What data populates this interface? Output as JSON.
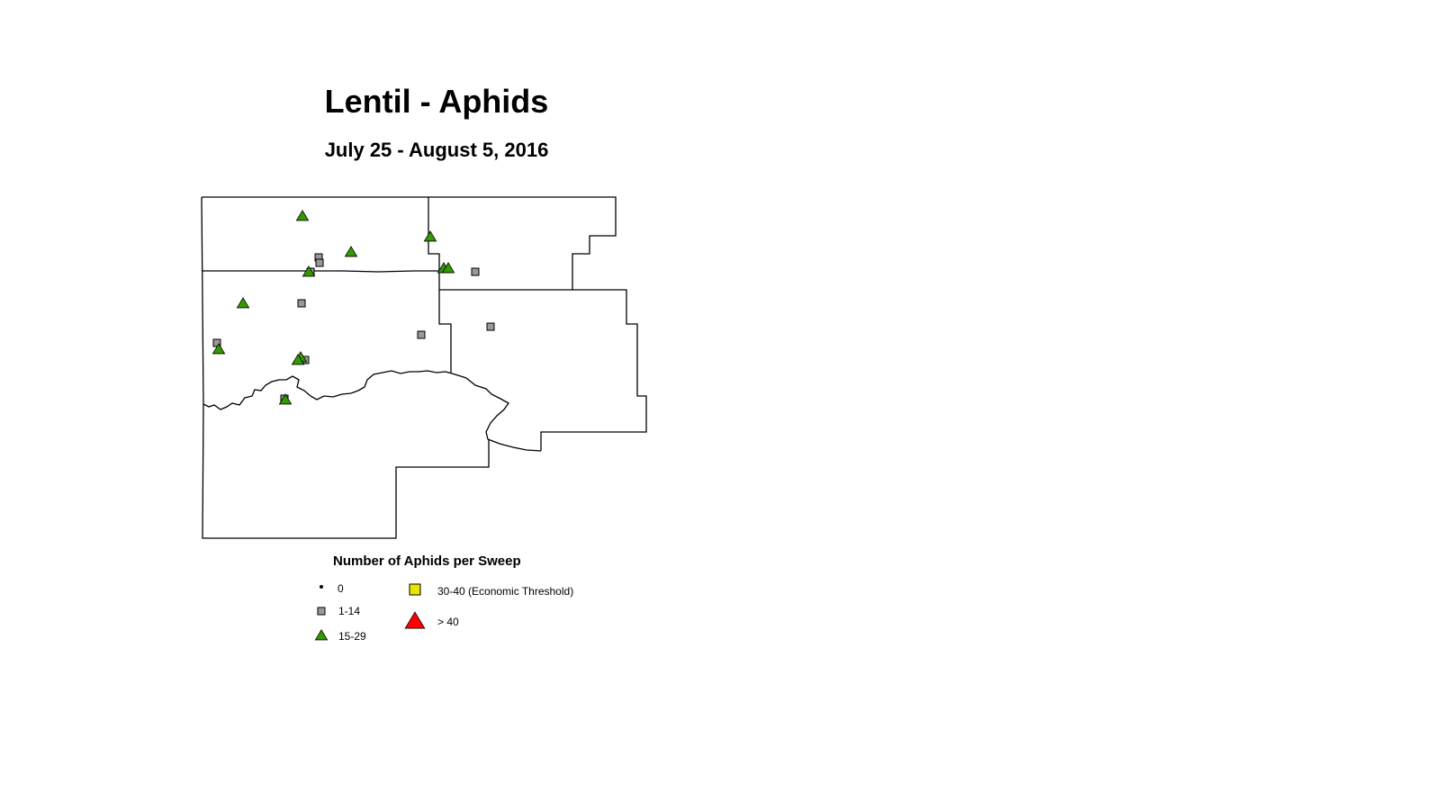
{
  "title": "Lentil - Aphids",
  "subtitle": "July 25 - August 5, 2016",
  "legend": {
    "title": "Number of Aphids per Sweep",
    "classes": [
      {
        "label": "0",
        "symbol": "dot",
        "color": "#000000"
      },
      {
        "label": "1-14",
        "symbol": "square",
        "color": "#999999"
      },
      {
        "label": "15-29",
        "symbol": "triangle",
        "color": "#339900"
      },
      {
        "label": "30-40 (Economic Threshold)",
        "symbol": "square",
        "color": "#e6e600"
      },
      {
        "label": "> 40",
        "symbol": "triangle",
        "color": "#ff0000"
      }
    ]
  }
}
